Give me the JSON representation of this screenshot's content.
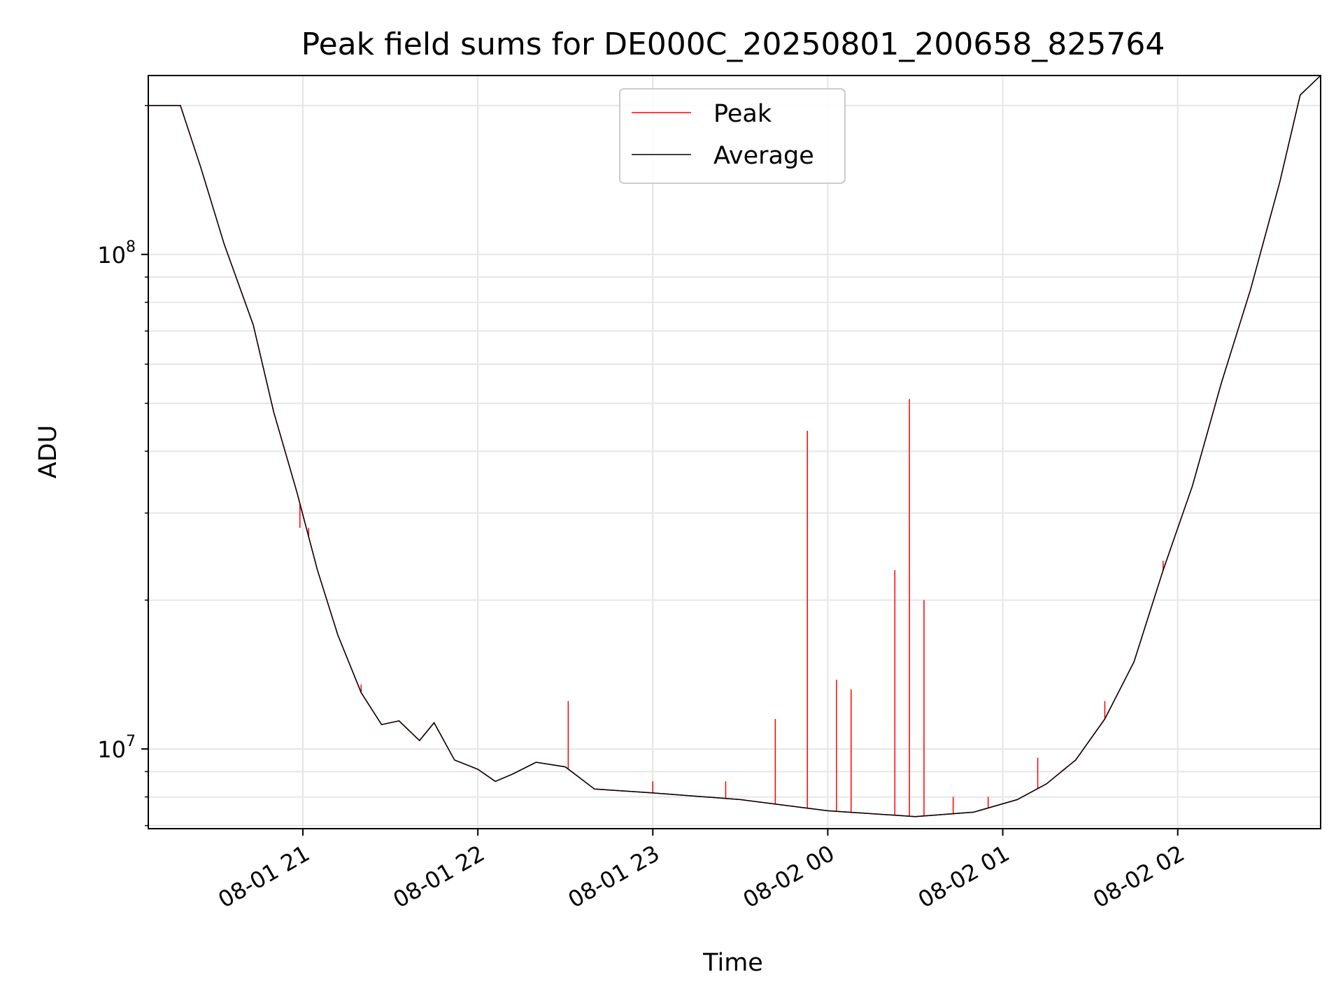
{
  "chart_data": {
    "type": "line",
    "title": "Peak field sums for DE000C_20250801_200658_825764",
    "xlabel": "Time",
    "ylabel": "ADU",
    "yscale": "log",
    "ylim": [
      6900000,
      230000000
    ],
    "xlim": [
      "2025-08-01 20:07",
      "2025-08-02 02:49"
    ],
    "x_ticks": [
      "08-01 21",
      "08-01 22",
      "08-01 23",
      "08-02 00",
      "08-02 01",
      "08-02 02"
    ],
    "y_ticks": [
      {
        "base": "10",
        "exp": "7"
      },
      {
        "base": "10",
        "exp": "8"
      }
    ],
    "grid": true,
    "legend": "upper center",
    "colors": {
      "Peak": "#ff0000",
      "Average": "#000000"
    },
    "average": {
      "name": "Average",
      "points": [
        [
          "2025-08-01 20:07",
          200000000
        ],
        [
          "2025-08-01 20:18",
          200000000
        ],
        [
          "2025-08-01 20:25",
          150000000
        ],
        [
          "2025-08-01 20:33",
          105000000
        ],
        [
          "2025-08-01 20:43",
          72000000
        ],
        [
          "2025-08-01 20:50",
          48000000
        ],
        [
          "2025-08-01 20:58",
          33000000
        ],
        [
          "2025-08-01 21:05",
          23000000
        ],
        [
          "2025-08-01 21:12",
          17000000
        ],
        [
          "2025-08-01 21:20",
          13000000
        ],
        [
          "2025-08-01 21:27",
          11200000
        ],
        [
          "2025-08-01 21:33",
          11400000
        ],
        [
          "2025-08-01 21:40",
          10400000
        ],
        [
          "2025-08-01 21:45",
          11300000
        ],
        [
          "2025-08-01 21:52",
          9500000
        ],
        [
          "2025-08-01 22:00",
          9100000
        ],
        [
          "2025-08-01 22:06",
          8600000
        ],
        [
          "2025-08-01 22:12",
          8900000
        ],
        [
          "2025-08-01 22:20",
          9400000
        ],
        [
          "2025-08-01 22:30",
          9200000
        ],
        [
          "2025-08-01 22:40",
          8300000
        ],
        [
          "2025-08-01 23:00",
          8150000
        ],
        [
          "2025-08-01 23:30",
          7900000
        ],
        [
          "2025-08-02 00:00",
          7500000
        ],
        [
          "2025-08-02 00:30",
          7300000
        ],
        [
          "2025-08-02 00:50",
          7450000
        ],
        [
          "2025-08-02 01:05",
          7900000
        ],
        [
          "2025-08-02 01:15",
          8500000
        ],
        [
          "2025-08-02 01:25",
          9500000
        ],
        [
          "2025-08-02 01:35",
          11500000
        ],
        [
          "2025-08-02 01:45",
          15000000
        ],
        [
          "2025-08-02 01:55",
          23000000
        ],
        [
          "2025-08-02 02:05",
          34000000
        ],
        [
          "2025-08-02 02:15",
          55000000
        ],
        [
          "2025-08-02 02:25",
          85000000
        ],
        [
          "2025-08-02 02:35",
          140000000
        ],
        [
          "2025-08-02 02:42",
          210000000
        ],
        [
          "2025-08-02 02:49",
          230000000
        ]
      ]
    },
    "peak": {
      "name": "Peak",
      "follows": "Average",
      "spikes": [
        [
          "2025-08-01 20:59",
          28000000
        ],
        [
          "2025-08-01 21:02",
          28000000
        ],
        [
          "2025-08-01 21:20",
          13500000
        ],
        [
          "2025-08-01 22:31",
          12500000
        ],
        [
          "2025-08-01 23:00",
          8600000
        ],
        [
          "2025-08-01 23:25",
          8600000
        ],
        [
          "2025-08-01 23:42",
          11500000
        ],
        [
          "2025-08-01 23:53",
          44000000
        ],
        [
          "2025-08-02 00:03",
          13800000
        ],
        [
          "2025-08-02 00:08",
          13200000
        ],
        [
          "2025-08-02 00:23",
          23000000
        ],
        [
          "2025-08-02 00:28",
          51000000
        ],
        [
          "2025-08-02 00:33",
          20000000
        ],
        [
          "2025-08-02 00:43",
          8000000
        ],
        [
          "2025-08-02 00:55",
          8000000
        ],
        [
          "2025-08-02 01:12",
          9600000
        ],
        [
          "2025-08-02 01:35",
          12500000
        ],
        [
          "2025-08-02 01:55",
          24000000
        ]
      ]
    }
  }
}
